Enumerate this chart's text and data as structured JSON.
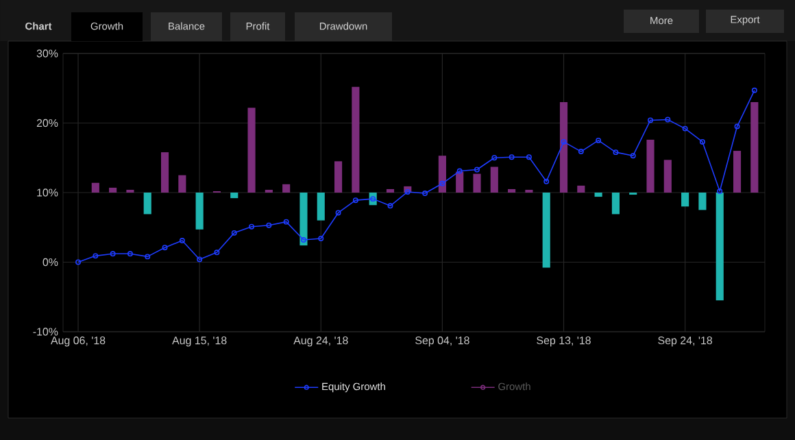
{
  "chart_data": {
    "type": "bar",
    "annotations": [
      "Chart",
      "Growth",
      "Balance",
      "Profit",
      "Drawdown",
      "More",
      "Export"
    ],
    "categories": [
      "Aug 06, '18",
      null,
      null,
      null,
      null,
      null,
      null,
      "Aug 15, '18",
      null,
      null,
      null,
      null,
      null,
      null,
      "Aug 24, '18",
      null,
      null,
      null,
      null,
      null,
      null,
      "Sep 04, '18",
      null,
      null,
      null,
      null,
      null,
      null,
      "Sep 13, '18",
      null,
      null,
      null,
      null,
      null,
      null,
      "Sep 24, '18",
      null,
      null,
      null,
      null
    ],
    "series": [
      {
        "name": "Equity Growth",
        "type": "line",
        "color": "#1e3cff",
        "marker": "circle",
        "values": [
          0,
          0.9,
          1.2,
          1.2,
          0.8,
          2.1,
          3.1,
          0.4,
          1.4,
          4.2,
          5.1,
          5.3,
          5.8,
          3.2,
          3.4,
          7.1,
          8.9,
          9.1,
          8.1,
          10.1,
          9.9,
          11.3,
          13.1,
          13.3,
          15.0,
          15.1,
          15.1,
          11.6,
          17.3,
          15.9,
          17.5,
          15.8,
          15.3,
          20.4,
          20.5,
          19.2,
          17.3,
          10.2,
          19.5,
          24.7
        ]
      },
      {
        "name": "Growth",
        "color": "#7b2d7b",
        "base": [
          null,
          10,
          10,
          10,
          10,
          10,
          10,
          10,
          10,
          10,
          10,
          10,
          10,
          10,
          10,
          10,
          10,
          10,
          10,
          10,
          null,
          10,
          10,
          10,
          10,
          10,
          10,
          10,
          10,
          10,
          10,
          10,
          10,
          10,
          10,
          10,
          10,
          10,
          10,
          10
        ],
        "values": [
          null,
          1.4,
          0.7,
          0.4,
          -3.1,
          5.8,
          2.5,
          -5.3,
          0.2,
          -0.8,
          12.2,
          0.4,
          1.2,
          -7.6,
          -4.0,
          4.5,
          15.2,
          -1.8,
          0.5,
          0.9,
          null,
          5.3,
          3.0,
          2.7,
          3.7,
          0.5,
          0.4,
          -10.8,
          13.0,
          1.0,
          -0.6,
          -3.1,
          -0.3,
          7.6,
          4.7,
          -2.0,
          -2.5,
          -15.5,
          6.0,
          13.0
        ],
        "colors": [
          "#7b2d7b",
          "#7b2d7b",
          "#7b2d7b",
          "#7b2d7b",
          "#1fb5b0",
          "#7b2d7b",
          "#7b2d7b",
          "#1fb5b0",
          "#7b2d7b",
          "#1fb5b0",
          "#7b2d7b",
          "#7b2d7b",
          "#7b2d7b",
          "#1fb5b0",
          "#1fb5b0",
          "#7b2d7b",
          "#7b2d7b",
          "#1fb5b0",
          "#7b2d7b",
          "#7b2d7b",
          "#7b2d7b",
          "#7b2d7b",
          "#7b2d7b",
          "#7b2d7b",
          "#7b2d7b",
          "#7b2d7b",
          "#7b2d7b",
          "#1fb5b0",
          "#7b2d7b",
          "#7b2d7b",
          "#1fb5b0",
          "#1fb5b0",
          "#1fb5b0",
          "#7b2d7b",
          "#7b2d7b",
          "#1fb5b0",
          "#1fb5b0",
          "#1fb5b0",
          "#7b2d7b",
          "#7b2d7b"
        ]
      }
    ],
    "ylim": [
      -10,
      30
    ],
    "yticks": [
      {
        "value": -10,
        "label": "-10%"
      },
      {
        "value": 0,
        "label": "0%"
      },
      {
        "value": 10,
        "label": "10%"
      },
      {
        "value": 20,
        "label": "20%"
      },
      {
        "value": 30,
        "label": "30%"
      }
    ],
    "grid": true,
    "legend": "bottom"
  }
}
